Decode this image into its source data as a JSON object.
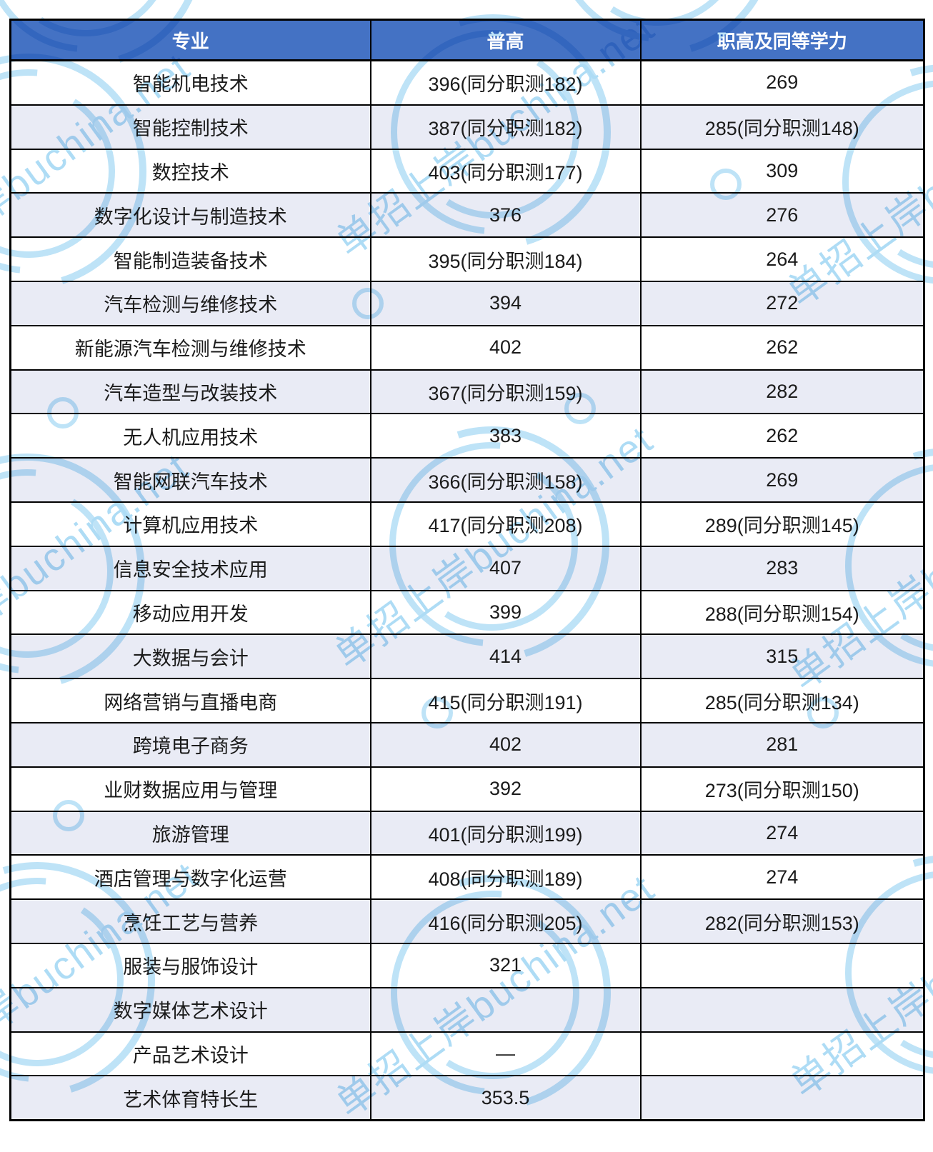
{
  "table": {
    "columns": [
      "专业",
      "普高",
      "职高及同等学力"
    ],
    "rows": [
      {
        "major": "智能机电技术",
        "putong": "396(同分职测182)",
        "zhigao": "269"
      },
      {
        "major": "智能控制技术",
        "putong": "387(同分职测182)",
        "zhigao": "285(同分职测148)"
      },
      {
        "major": "数控技术",
        "putong": "403(同分职测177)",
        "zhigao": "309"
      },
      {
        "major": "数字化设计与制造技术",
        "putong": "376",
        "zhigao": "276"
      },
      {
        "major": "智能制造装备技术",
        "putong": "395(同分职测184)",
        "zhigao": "264"
      },
      {
        "major": "汽车检测与维修技术",
        "putong": "394",
        "zhigao": "272"
      },
      {
        "major": "新能源汽车检测与维修技术",
        "putong": "402",
        "zhigao": "262"
      },
      {
        "major": "汽车造型与改装技术",
        "putong": "367(同分职测159)",
        "zhigao": "282"
      },
      {
        "major": "无人机应用技术",
        "putong": "383",
        "zhigao": "262"
      },
      {
        "major": "智能网联汽车技术",
        "putong": "366(同分职测158)",
        "zhigao": "269"
      },
      {
        "major": "计算机应用技术",
        "putong": "417(同分职测208)",
        "zhigao": "289(同分职测145)"
      },
      {
        "major": "信息安全技术应用",
        "putong": "407",
        "zhigao": "283"
      },
      {
        "major": "移动应用开发",
        "putong": "399",
        "zhigao": "288(同分职测154)"
      },
      {
        "major": "大数据与会计",
        "putong": "414",
        "zhigao": "315"
      },
      {
        "major": "网络营销与直播电商",
        "putong": "415(同分职测191)",
        "zhigao": "285(同分职测134)"
      },
      {
        "major": "跨境电子商务",
        "putong": "402",
        "zhigao": "281"
      },
      {
        "major": "业财数据应用与管理",
        "putong": "392",
        "zhigao": "273(同分职测150)"
      },
      {
        "major": "旅游管理",
        "putong": "401(同分职测199)",
        "zhigao": "274"
      },
      {
        "major": "酒店管理与数字化运营",
        "putong": "408(同分职测189)",
        "zhigao": "274"
      },
      {
        "major": "烹饪工艺与营养",
        "putong": "416(同分职测205)",
        "zhigao": "282(同分职测153)"
      },
      {
        "major": "服装与服饰设计",
        "putong": "321",
        "zhigao": ""
      },
      {
        "major": "数字媒体艺术设计",
        "putong": "",
        "zhigao": ""
      },
      {
        "major": "产品艺术设计",
        "putong": "—",
        "zhigao": ""
      },
      {
        "major": "艺术体育特长生",
        "putong": "353.5",
        "zhigao": ""
      }
    ]
  },
  "watermark": {
    "text": "单招上岸buchina.net",
    "color": "#BEE3F7"
  },
  "colors": {
    "header_bg": "#4472C4",
    "header_text": "#FFFFFF",
    "row_alt_bg": "#E9EBF5",
    "border": "#000000"
  }
}
